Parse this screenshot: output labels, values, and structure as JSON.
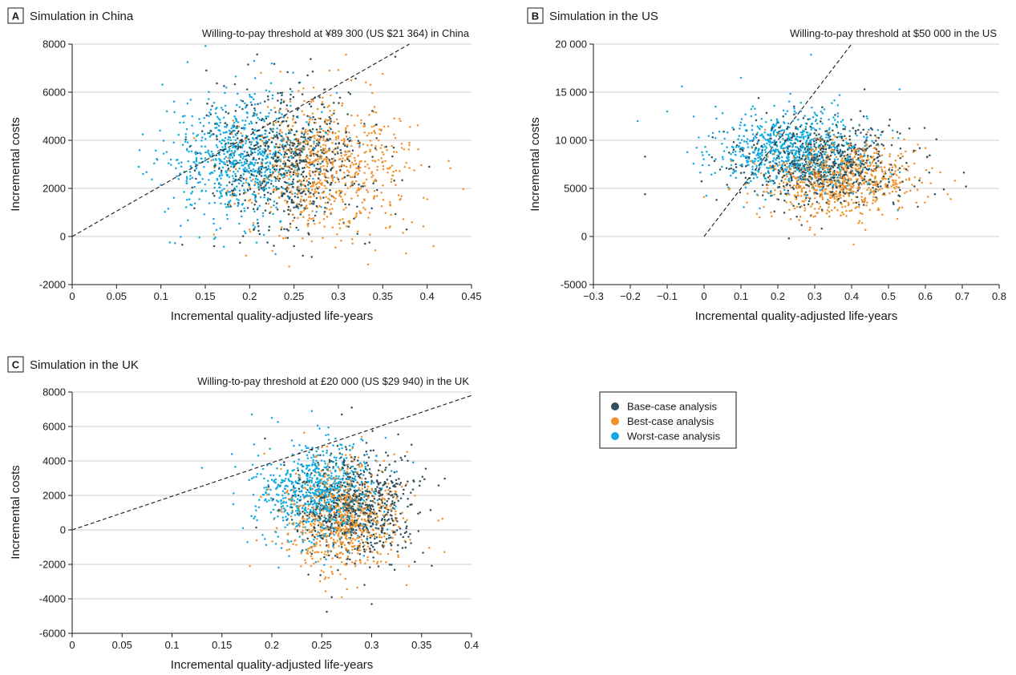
{
  "legend": {
    "items": [
      {
        "label": "Base-case analysis",
        "color": "#2e4f5c"
      },
      {
        "label": "Best-case analysis",
        "color": "#f0922b"
      },
      {
        "label": "Worst-case analysis",
        "color": "#10a9e0"
      }
    ]
  },
  "chart_data": [
    {
      "id": "A",
      "type": "scatter",
      "panel_letter": "A",
      "title": "Simulation in China",
      "threshold_label": "Willing-to-pay threshold at ¥89 300 (US $21 364) in China",
      "xlabel": "Incremental quality-adjusted life-years",
      "ylabel": "Incremental costs",
      "xlim": [
        0,
        0.45
      ],
      "ylim": [
        -2000,
        8000
      ],
      "x_ticks": [
        0,
        0.05,
        0.1,
        0.15,
        0.2,
        0.25,
        0.3,
        0.35,
        0.4,
        0.45
      ],
      "x_tick_labels": [
        "0",
        "0.05",
        "0.1",
        "0.15",
        "0.2",
        "0.25",
        "0.3",
        "0.35",
        "0.4",
        "0.45"
      ],
      "y_ticks": [
        -2000,
        0,
        2000,
        4000,
        6000,
        8000
      ],
      "y_tick_labels": [
        "-2000",
        "0",
        "2000",
        "4000",
        "6000",
        "8000"
      ],
      "threshold_line": {
        "x": [
          0,
          0.38
        ],
        "y": [
          0,
          8000
        ]
      },
      "series": [
        {
          "name": "Base-case analysis",
          "color": "#2e4f5c",
          "cx": 0.245,
          "cy": 3200,
          "sx": 0.045,
          "sy": 1400,
          "n": 700,
          "outliers": [
            [
              0.25,
              -400
            ],
            [
              0.26,
              -800
            ],
            [
              0.27,
              -850
            ],
            [
              0.33,
              -300
            ],
            [
              0.335,
              -250
            ],
            [
              0.16,
              -400
            ],
            [
              0.22,
              -250
            ]
          ]
        },
        {
          "name": "Best-case analysis",
          "color": "#f0922b",
          "cx": 0.285,
          "cy": 2900,
          "sx": 0.045,
          "sy": 1400,
          "n": 750,
          "outliers": [
            [
              0.4,
              1550
            ],
            [
              0.38,
              3800
            ],
            [
              0.37,
              4800
            ],
            [
              0.29,
              6900
            ],
            [
              0.27,
              -200
            ]
          ]
        },
        {
          "name": "Worst-case analysis",
          "color": "#10a9e0",
          "cx": 0.19,
          "cy": 3300,
          "sx": 0.04,
          "sy": 1300,
          "n": 750,
          "outliers": [
            [
              0.075,
              2900
            ],
            [
              0.08,
              2600
            ],
            [
              0.11,
              -250
            ],
            [
              0.13,
              7250
            ],
            [
              0.205,
              7300
            ],
            [
              0.225,
              7200
            ],
            [
              0.16,
              -100
            ]
          ]
        }
      ]
    },
    {
      "id": "B",
      "type": "scatter",
      "panel_letter": "B",
      "title": "Simulation in the US",
      "threshold_label": "Willing-to-pay threshold at $50 000 in the US",
      "xlabel": "Incremental quality-adjusted life-years",
      "ylabel": "Incremental costs",
      "xlim": [
        -0.3,
        0.8
      ],
      "ylim": [
        -5000,
        20000
      ],
      "x_ticks": [
        -0.3,
        -0.2,
        -0.1,
        0,
        0.1,
        0.2,
        0.3,
        0.4,
        0.5,
        0.6,
        0.7,
        0.8
      ],
      "x_tick_labels": [
        "−0.3",
        "−0.2",
        "−0.1",
        "0",
        "0.1",
        "0.2",
        "0.3",
        "0.4",
        "0.5",
        "0.6",
        "0.7",
        "0.8"
      ],
      "y_ticks": [
        -5000,
        0,
        5000,
        10000,
        15000,
        20000
      ],
      "y_tick_labels": [
        "-5000",
        "0",
        "5000",
        "10 000",
        "15 000",
        "20 000"
      ],
      "threshold_line": {
        "x": [
          0,
          0.4
        ],
        "y": [
          0,
          20000
        ]
      },
      "series": [
        {
          "name": "Base-case analysis",
          "color": "#2e4f5c",
          "cx": 0.33,
          "cy": 7600,
          "sx": 0.11,
          "sy": 2100,
          "n": 700,
          "outliers": [
            [
              -0.16,
              4400
            ],
            [
              -0.16,
              8300
            ],
            [
              0.65,
              4900
            ],
            [
              0.71,
              5200
            ],
            [
              0.23,
              -200
            ],
            [
              0.63,
              10100
            ]
          ]
        },
        {
          "name": "Best-case analysis",
          "color": "#f0922b",
          "cx": 0.37,
          "cy": 6000,
          "sx": 0.1,
          "sy": 1900,
          "n": 750,
          "outliers": [
            [
              0.68,
              5800
            ],
            [
              0.6,
              9200
            ],
            [
              0.3,
              200
            ],
            [
              0.0,
              4100
            ]
          ]
        },
        {
          "name": "Worst-case analysis",
          "color": "#10a9e0",
          "cx": 0.24,
          "cy": 9000,
          "sx": 0.1,
          "sy": 2100,
          "n": 750,
          "outliers": [
            [
              -0.18,
              12000
            ],
            [
              -0.06,
              15600
            ],
            [
              0.29,
              18900
            ],
            [
              0.1,
              16500
            ],
            [
              -0.1,
              13000
            ],
            [
              0.53,
              15300
            ]
          ]
        }
      ]
    },
    {
      "id": "C",
      "type": "scatter",
      "panel_letter": "C",
      "title": "Simulation in the UK",
      "threshold_label": "Willing-to-pay threshold at £20 000 (US $29 940) in the UK",
      "xlabel": "Incremental quality-adjusted life-years",
      "ylabel": "Incremental costs",
      "xlim": [
        0,
        0.4
      ],
      "ylim": [
        -6000,
        8000
      ],
      "x_ticks": [
        0,
        0.05,
        0.1,
        0.15,
        0.2,
        0.25,
        0.3,
        0.35,
        0.4
      ],
      "x_tick_labels": [
        "0",
        "0.05",
        "0.1",
        "0.15",
        "0.2",
        "0.25",
        "0.3",
        "0.35",
        "0.4"
      ],
      "y_ticks": [
        -6000,
        -4000,
        -2000,
        0,
        2000,
        4000,
        6000,
        8000
      ],
      "y_tick_labels": [
        "-6000",
        "-4000",
        "-2000",
        "0",
        "2000",
        "4000",
        "6000",
        "8000"
      ],
      "threshold_line": {
        "x": [
          0,
          0.4
        ],
        "y": [
          0,
          7800
        ]
      },
      "series": [
        {
          "name": "Base-case analysis",
          "color": "#2e4f5c",
          "cx": 0.285,
          "cy": 1300,
          "sx": 0.03,
          "sy": 1500,
          "n": 700,
          "outliers": [
            [
              0.255,
              -4750
            ],
            [
              0.3,
              -4300
            ],
            [
              0.28,
              7100
            ],
            [
              0.27,
              6700
            ],
            [
              0.26,
              -3900
            ]
          ]
        },
        {
          "name": "Best-case analysis",
          "color": "#f0922b",
          "cx": 0.27,
          "cy": 700,
          "sx": 0.03,
          "sy": 1500,
          "n": 750,
          "outliers": [
            [
              0.178,
              -2100
            ],
            [
              0.27,
              -3900
            ],
            [
              0.29,
              5400
            ],
            [
              0.335,
              -3200
            ]
          ]
        },
        {
          "name": "Worst-case analysis",
          "color": "#10a9e0",
          "cx": 0.245,
          "cy": 2200,
          "sx": 0.028,
          "sy": 1400,
          "n": 750,
          "outliers": [
            [
              0.13,
              3600
            ],
            [
              0.18,
              6700
            ],
            [
              0.2,
              6500
            ],
            [
              0.24,
              6900
            ],
            [
              0.16,
              4400
            ]
          ]
        }
      ]
    }
  ]
}
